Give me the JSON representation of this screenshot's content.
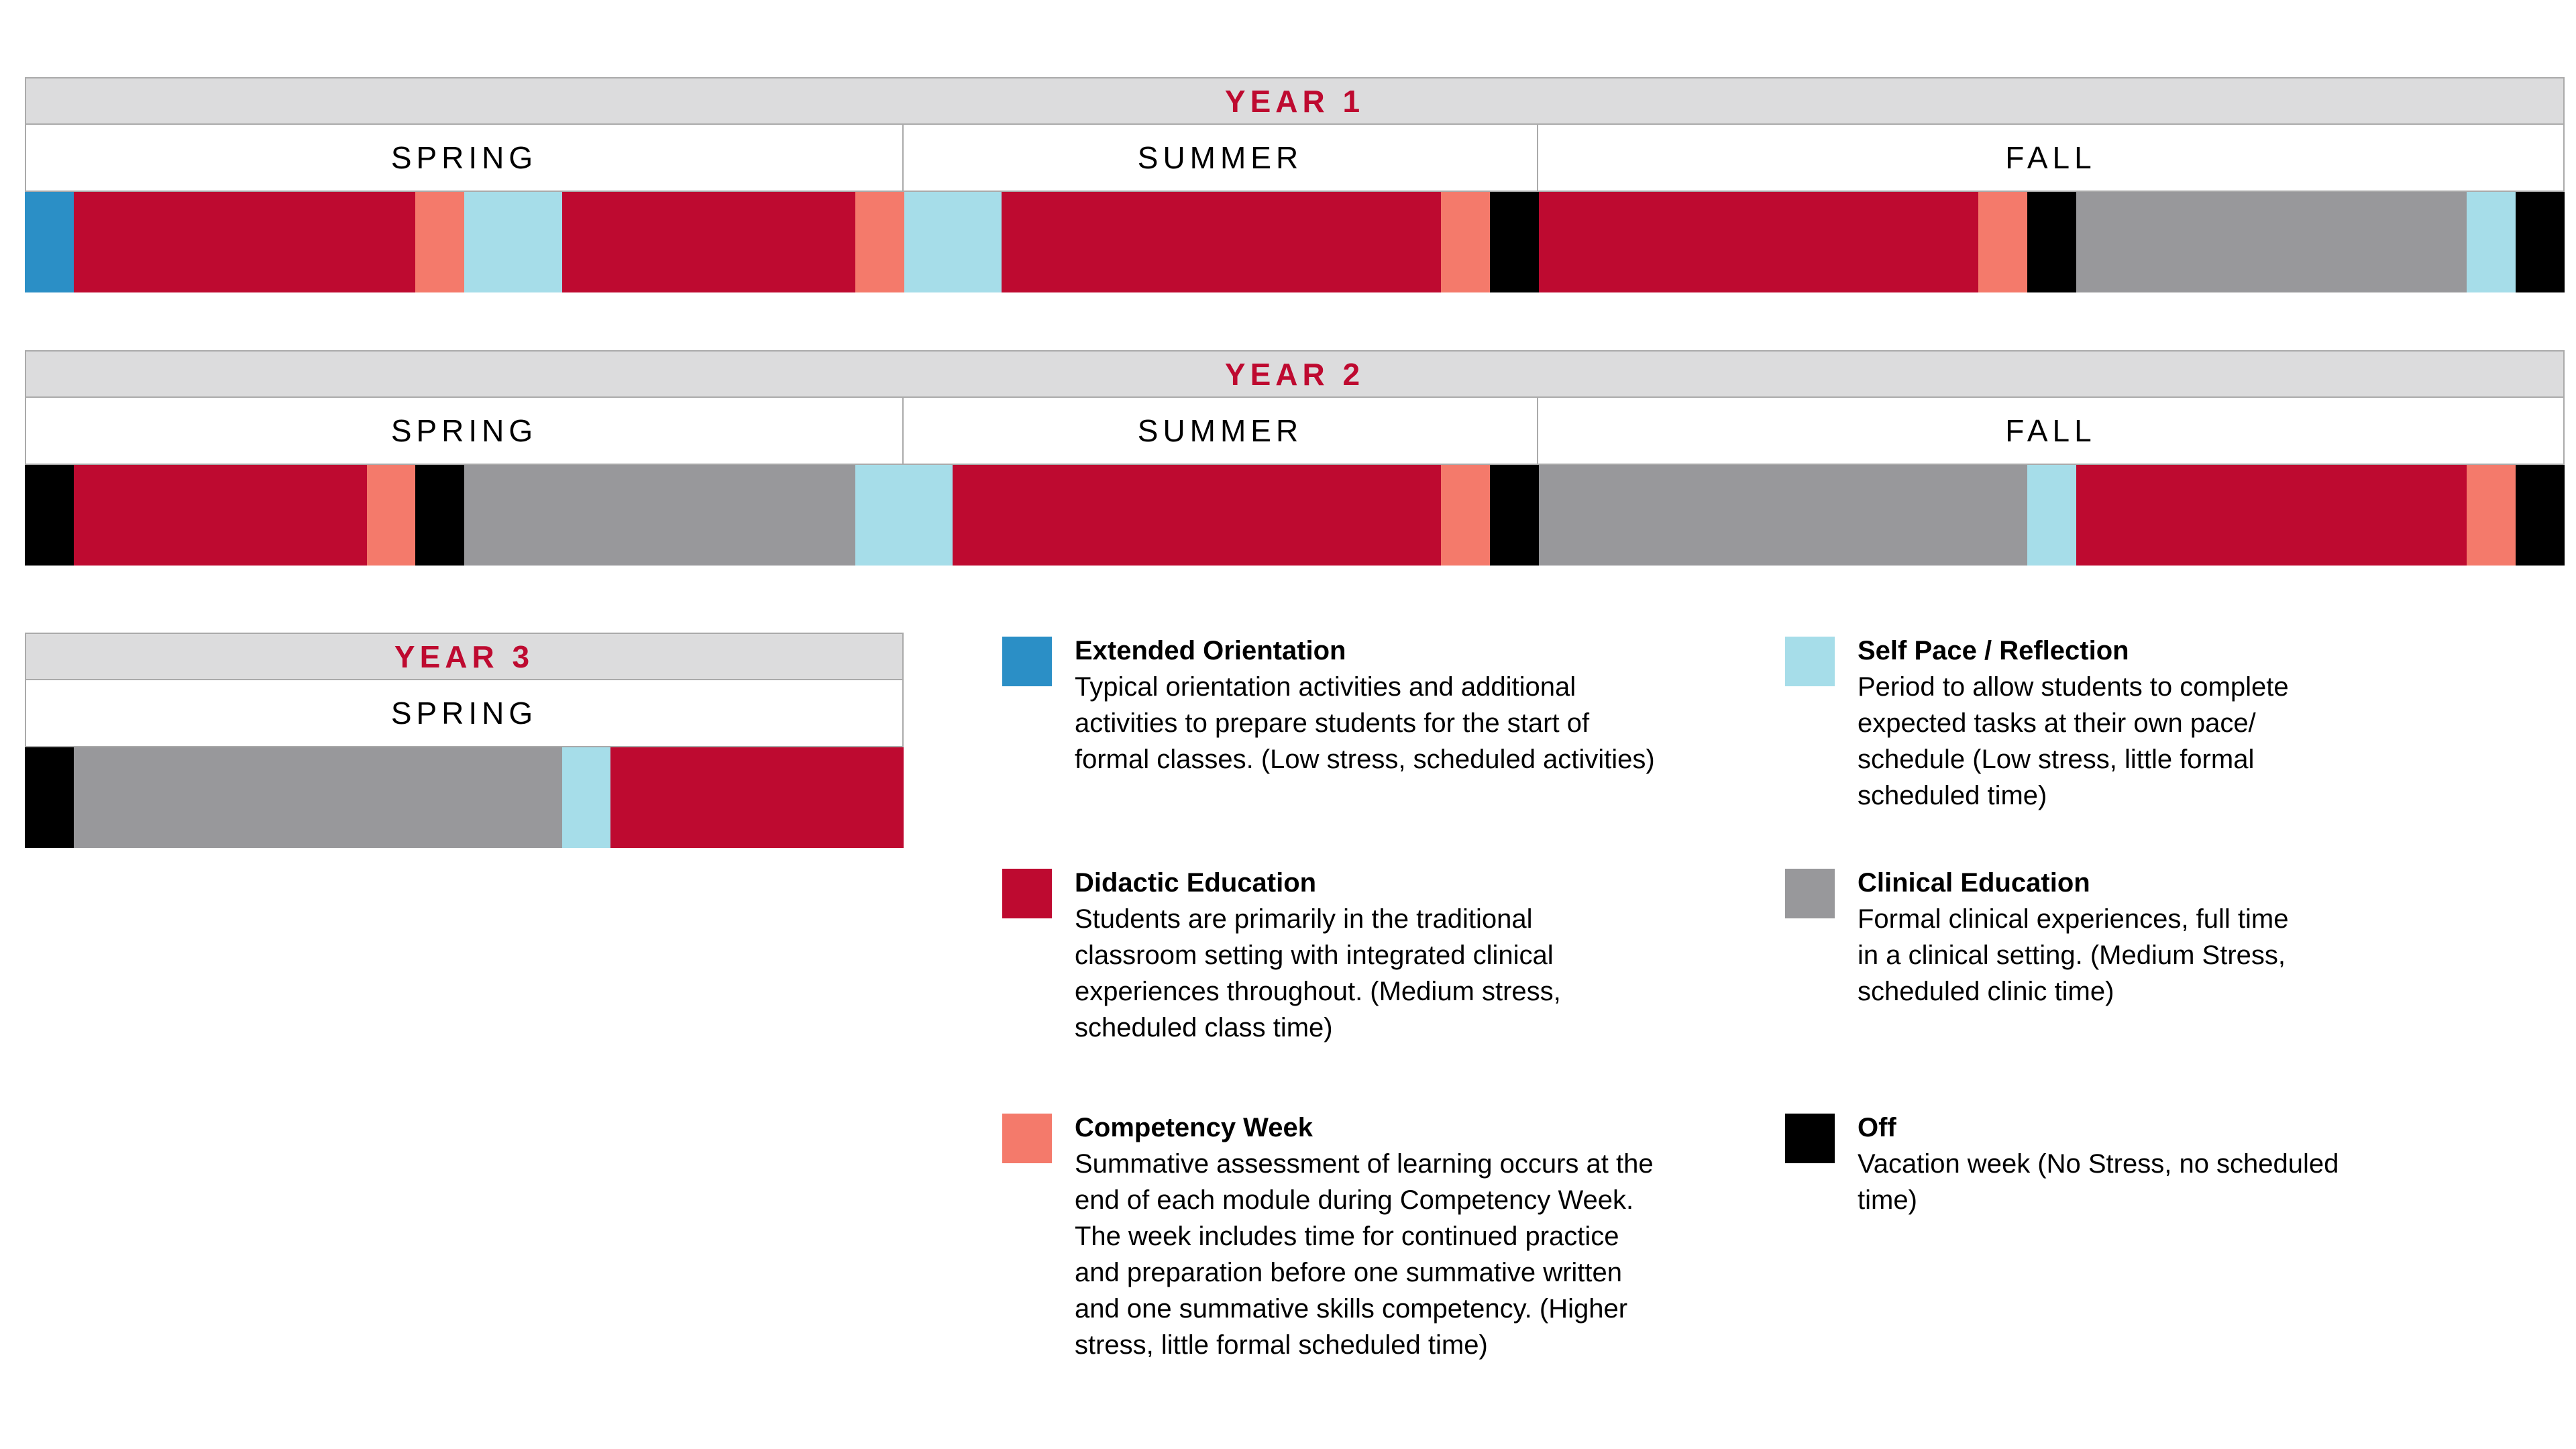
{
  "colors": {
    "orientation": "#2b8fc6",
    "didactic": "#be0a30",
    "competency": "#f47a6b",
    "selfpace": "#a6dde9",
    "clinical": "#98989b",
    "off": "#000000"
  },
  "years": [
    {
      "label": "YEAR 1",
      "seasons": [
        "SPRING",
        "SUMMER",
        "FALL"
      ],
      "weeks": [
        {
          "t": "orientation",
          "w": 1
        },
        {
          "t": "didactic",
          "w": 7
        },
        {
          "t": "competency",
          "w": 1
        },
        {
          "t": "selfpace",
          "w": 2
        },
        {
          "t": "didactic",
          "w": 6
        },
        {
          "t": "competency",
          "w": 1
        },
        {
          "t": "selfpace",
          "w": 2
        },
        {
          "t": "didactic",
          "w": 9
        },
        {
          "t": "competency",
          "w": 1
        },
        {
          "t": "off",
          "w": 1
        },
        {
          "t": "didactic",
          "w": 9
        },
        {
          "t": "competency",
          "w": 1
        },
        {
          "t": "off",
          "w": 1
        },
        {
          "t": "clinical",
          "w": 8
        },
        {
          "t": "selfpace",
          "w": 1
        },
        {
          "t": "off",
          "w": 1
        }
      ]
    },
    {
      "label": "YEAR 2",
      "seasons": [
        "SPRING",
        "SUMMER",
        "FALL"
      ],
      "weeks": [
        {
          "t": "off",
          "w": 1
        },
        {
          "t": "didactic",
          "w": 6
        },
        {
          "t": "competency",
          "w": 1
        },
        {
          "t": "off",
          "w": 1
        },
        {
          "t": "clinical",
          "w": 8
        },
        {
          "t": "selfpace",
          "w": 2
        },
        {
          "t": "didactic",
          "w": 10
        },
        {
          "t": "competency",
          "w": 1
        },
        {
          "t": "off",
          "w": 1
        },
        {
          "t": "clinical",
          "w": 10
        },
        {
          "t": "selfpace",
          "w": 1
        },
        {
          "t": "didactic",
          "w": 8
        },
        {
          "t": "competency",
          "w": 1
        },
        {
          "t": "off",
          "w": 1
        }
      ]
    },
    {
      "label": "YEAR 3",
      "seasons": [
        "SPRING"
      ],
      "weeks": [
        {
          "t": "off",
          "w": 1
        },
        {
          "t": "clinical",
          "w": 10
        },
        {
          "t": "selfpace",
          "w": 1
        },
        {
          "t": "didactic",
          "w": 6
        }
      ]
    }
  ],
  "legend": [
    {
      "key": "orientation",
      "title": "Extended Orientation",
      "desc": [
        "Typical orientation activities and additional",
        "activities to prepare students for the start of",
        "formal classes. (Low stress, scheduled activities)"
      ]
    },
    {
      "key": "selfpace",
      "title": "Self Pace / Reflection",
      "desc": [
        "Period to allow students to complete",
        "expected tasks at their own pace/",
        "schedule (Low stress, little formal",
        "scheduled time)"
      ]
    },
    {
      "key": "didactic",
      "title": "Didactic Education",
      "desc": [
        "Students are primarily in the traditional",
        "classroom setting with integrated clinical",
        "experiences throughout. (Medium stress,",
        "scheduled class time)"
      ]
    },
    {
      "key": "clinical",
      "title": "Clinical Education",
      "desc": [
        "Formal clinical experiences, full time",
        "in a clinical setting. (Medium Stress,",
        "scheduled clinic time)"
      ]
    },
    {
      "key": "competency",
      "title": "Competency Week",
      "desc": [
        "Summative assessment of learning occurs at the",
        "end of each module during Competency Week.",
        "The week includes time for continued practice",
        "and preparation before one summative written",
        "and one summative skills competency. (Higher",
        "stress, little formal scheduled time)"
      ]
    },
    {
      "key": "off",
      "title": "Off",
      "desc": [
        "Vacation week (No Stress, no scheduled",
        "time)"
      ]
    }
  ]
}
